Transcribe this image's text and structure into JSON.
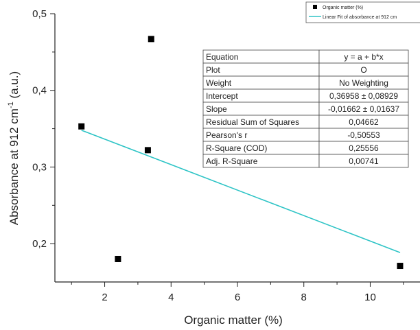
{
  "chart_data": {
    "type": "scatter",
    "xlabel": "Organic matter (%)",
    "ylabel_main": "Absorbance at 912 cm",
    "ylabel_sup": "-1",
    "ylabel_unit": " (a.u.)",
    "xlim": [
      0.5,
      11.5
    ],
    "ylim": [
      0.15,
      0.5
    ],
    "xticks": [
      2,
      4,
      6,
      8,
      10
    ],
    "xtick_labels": [
      "2",
      "4",
      "6",
      "8",
      "10"
    ],
    "yticks": [
      0.2,
      0.3,
      0.4,
      0.5
    ],
    "ytick_labels": [
      "0,2",
      "0,3",
      "0,4",
      "0,5"
    ],
    "series": [
      {
        "name": "Organic matter (%)",
        "marker": "square",
        "color": "#000000",
        "x": [
          1.3,
          2.4,
          3.3,
          3.4,
          10.9
        ],
        "y": [
          0.353,
          0.18,
          0.322,
          0.467,
          0.171
        ]
      }
    ],
    "fit": {
      "name": "Linear Fit of absorbance at 912 cm",
      "color": "#2ec4c6",
      "intercept": 0.36958,
      "slope": -0.01662,
      "x_range": [
        1.3,
        10.9
      ]
    },
    "legend_placement": "top-right",
    "fit_table": [
      [
        "Equation",
        "y = a + b*x"
      ],
      [
        "Plot",
        "O"
      ],
      [
        "Weight",
        "No Weighting"
      ],
      [
        "Intercept",
        "0,36958 ± 0,08929"
      ],
      [
        "Slope",
        "-0,01662 ± 0,01637"
      ],
      [
        "Residual Sum of Squares",
        "0,04662"
      ],
      [
        "Pearson's r",
        "-0,50553"
      ],
      [
        "R-Square (COD)",
        "0,25556"
      ],
      [
        "Adj. R-Square",
        "0,00741"
      ]
    ]
  }
}
